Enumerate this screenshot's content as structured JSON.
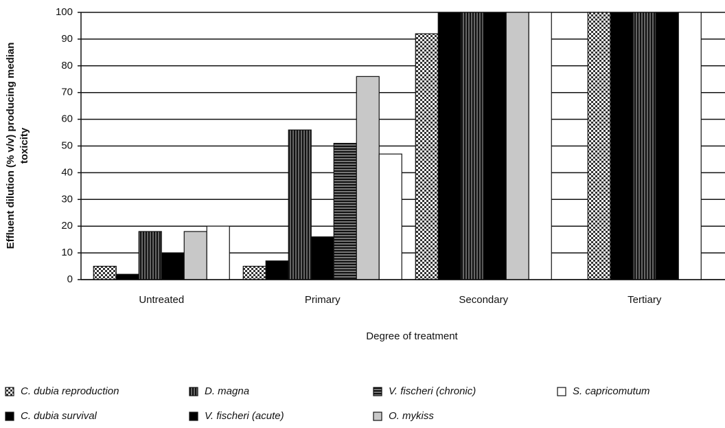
{
  "chart_data": {
    "type": "bar",
    "ylabel": [
      "Effluent dilution (% v/v) producing median",
      "toxicity"
    ],
    "xlabel": "Degree of treatment",
    "categories": [
      "Untreated",
      "Primary",
      "Secondary",
      "Tertiary"
    ],
    "ylim": [
      0,
      100
    ],
    "yticks": [
      0,
      10,
      20,
      30,
      40,
      50,
      60,
      70,
      80,
      90,
      100
    ],
    "grid": true,
    "legend": "bottom",
    "series": [
      {
        "name": "C. dubia reproduction",
        "color": "#ffffff",
        "pattern": "checker",
        "values": [
          5,
          5,
          92,
          100
        ]
      },
      {
        "name": "C. dubia survival",
        "color": "#000000",
        "pattern": "none",
        "values": [
          2,
          7,
          100,
          100
        ]
      },
      {
        "name": "D. magna",
        "color": "#333333",
        "pattern": "vstripe",
        "values": [
          18,
          56,
          100,
          100
        ]
      },
      {
        "name": "V. fischeri (acute)",
        "color": "#000000",
        "pattern": "none",
        "values": [
          10,
          16,
          100,
          100
        ]
      },
      {
        "name": "V. fischeri (chronic)",
        "color": "#ffffff",
        "pattern": "hstripe",
        "values": [
          null,
          51,
          null,
          null
        ]
      },
      {
        "name": "O. mykiss",
        "color": "#c8c8c8",
        "pattern": "none",
        "values": [
          18,
          76,
          100,
          null
        ]
      },
      {
        "name": "S. capricomutum",
        "color": "#ffffff",
        "pattern": "none",
        "values": [
          20,
          47,
          100,
          100
        ]
      }
    ]
  }
}
